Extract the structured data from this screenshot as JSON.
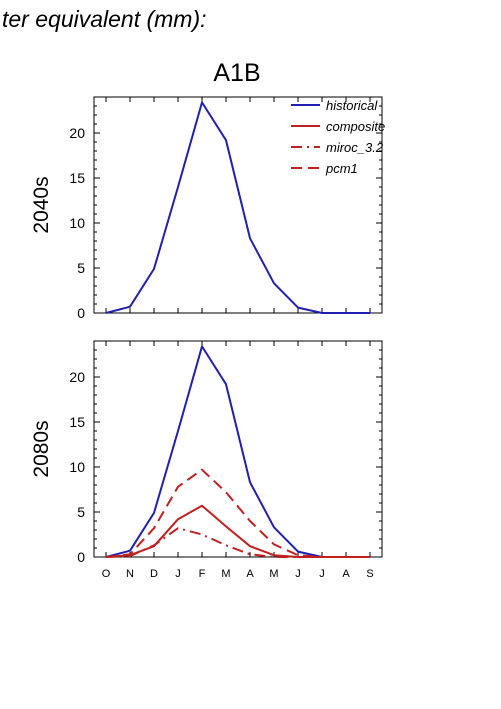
{
  "header": {
    "text": "ter equivalent (mm):"
  },
  "chart_data": {
    "type": "line",
    "title": "A1B",
    "xlabel": "",
    "ylabel": "",
    "categories": [
      "O",
      "N",
      "D",
      "J",
      "F",
      "M",
      "A",
      "M",
      "J",
      "J",
      "A",
      "S"
    ],
    "ylim": [
      0,
      24
    ],
    "yticks": [
      0,
      5,
      10,
      15,
      20
    ],
    "legend": {
      "placement": "top-right",
      "entries": [
        {
          "name": "historical",
          "color": "#2020b0",
          "dash": "solid"
        },
        {
          "name": "composite",
          "color": "#c02020",
          "dash": "solid"
        },
        {
          "name": "miroc_3.2",
          "color": "#c02020",
          "dash": "dash-dot"
        },
        {
          "name": "pcm1",
          "color": "#c02020",
          "dash": "dash"
        }
      ]
    },
    "panels": [
      {
        "label": "2040s",
        "series": [
          {
            "name": "historical",
            "values": [
              0,
              0.7,
              4.9,
              14.0,
              23.4,
              19.2,
              8.3,
              3.3,
              0.6,
              0,
              0,
              0
            ]
          }
        ]
      },
      {
        "label": "2080s",
        "series": [
          {
            "name": "historical",
            "values": [
              0,
              0.7,
              4.9,
              14.0,
              23.4,
              19.2,
              8.3,
              3.3,
              0.6,
              0,
              0,
              0
            ]
          },
          {
            "name": "composite",
            "values": [
              0,
              0.2,
              1.2,
              4.2,
              5.7,
              3.4,
              1.2,
              0.2,
              0,
              0,
              0,
              0
            ]
          },
          {
            "name": "miroc_3.2",
            "values": [
              0,
              0.1,
              1.3,
              3.2,
              2.5,
              1.3,
              0.3,
              0,
              0,
              0,
              0,
              0
            ]
          },
          {
            "name": "pcm1",
            "values": [
              0,
              0.3,
              3.2,
              7.8,
              9.7,
              7.2,
              4.0,
              1.4,
              0.2,
              0,
              0,
              0
            ]
          }
        ]
      }
    ]
  }
}
